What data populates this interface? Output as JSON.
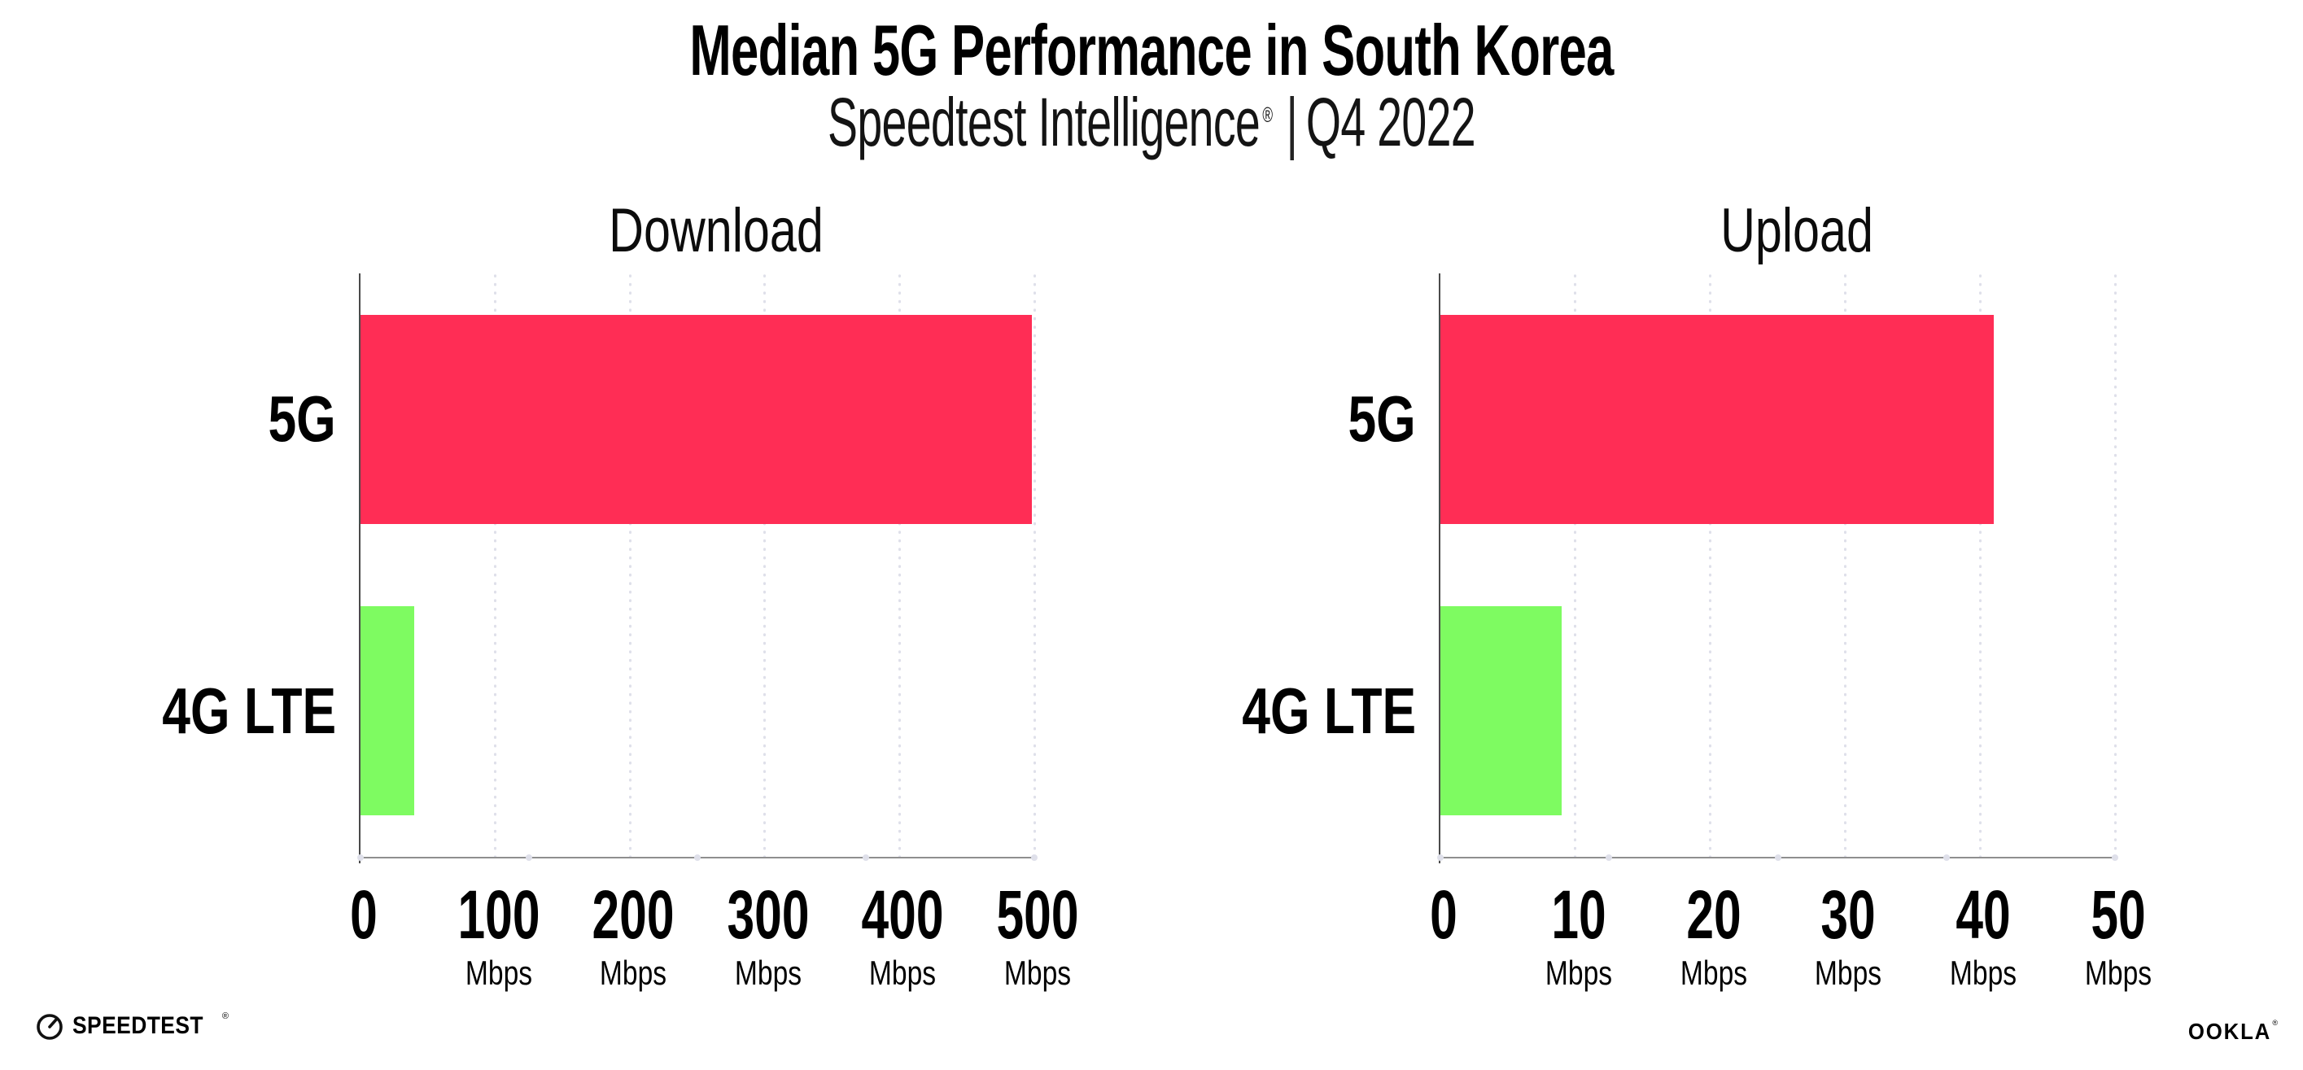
{
  "page": {
    "title": "Median 5G Performance in South Korea",
    "subtitle_brand": "Speedtest Intelligence",
    "subtitle_reg": "®",
    "subtitle_divider": "|",
    "subtitle_period": "Q4 2022",
    "background": "#ffffff"
  },
  "colors": {
    "bar_5g": "#ff2d55",
    "bar_4g_lte": "#7efb61",
    "gridline_dots": "#dfe0ea",
    "x_axis_line": "#8f8f8f",
    "y_axis_line": "#4a4a4a",
    "text": "#000000"
  },
  "chart_data": [
    {
      "type": "bar",
      "orientation": "horizontal",
      "title": "Download",
      "categories": [
        "5G",
        "4G LTE"
      ],
      "values": [
        498,
        40
      ],
      "value_unit": "Mbps",
      "xlim": [
        0,
        500
      ],
      "xticks": [
        0,
        100,
        200,
        300,
        400,
        500
      ],
      "xtick_unit": "Mbps",
      "xtick_unit_shown_for_zero": false,
      "bar_colors": [
        "#ff2d55",
        "#7efb61"
      ],
      "grid": "vertical-dotted",
      "legend": "none"
    },
    {
      "type": "bar",
      "orientation": "horizontal",
      "title": "Upload",
      "categories": [
        "5G",
        "4G LTE"
      ],
      "values": [
        41,
        9
      ],
      "value_unit": "Mbps",
      "xlim": [
        0,
        50
      ],
      "xticks": [
        0,
        10,
        20,
        30,
        40,
        50
      ],
      "xtick_unit": "Mbps",
      "xtick_unit_shown_for_zero": false,
      "bar_colors": [
        "#ff2d55",
        "#7efb61"
      ],
      "grid": "vertical-dotted",
      "legend": "none"
    }
  ],
  "footer": {
    "speedtest_label": "SPEEDTEST",
    "speedtest_mark": "®",
    "speedtest_icon": "gauge-icon",
    "ookla_label": "OOKLA",
    "ookla_mark": "®"
  }
}
